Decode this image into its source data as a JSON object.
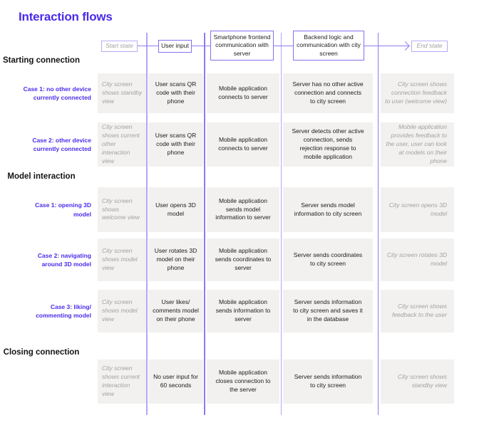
{
  "title": "Interaction flows",
  "colors": {
    "accent": "#4a2ceb",
    "line_purple": "#8d7cf0",
    "line_purple_light": "#b3a6f6",
    "cell_background": "#f2f1f0",
    "muted_text": "#a3a19f",
    "body_text": "#1d1c1a"
  },
  "header": {
    "start": "Start state",
    "user_input": "User input",
    "smartphone": "Smartphone frontend communication with server",
    "backend": "Backend logic and communication with city screen",
    "end": "End state"
  },
  "sections": [
    {
      "heading": "Starting connection",
      "rows": [
        {
          "case_label": "Case 1: no other device currently connected",
          "start_state": "City screen shows standby view",
          "user_input": "User scans QR code with their phone",
          "smartphone": "Mobile application connects to server",
          "backend": "Server has no other active connection and connects to city screen",
          "end_state": "City screen shows connection feedback to user (welcome view)"
        },
        {
          "case_label": "Case 2: other device currently connected",
          "start_state": "City screen shows current other interaction view",
          "user_input": "User scans QR code with their phone",
          "smartphone": "Mobile application connects to server",
          "backend": "Server detects other active connection, sends rejection response to mobile application",
          "end_state": "Mobile application provides feedback to the user, user can look at models on their phone"
        }
      ]
    },
    {
      "heading": "Model interaction",
      "rows": [
        {
          "case_label": "Case 1: opening 3D model",
          "start_state": "City screen shows welcome view",
          "user_input": "User opens 3D model",
          "smartphone": "Mobile application sends model information to server",
          "backend": "Server sends model information to city screen",
          "end_state": "City screen opens 3D model"
        },
        {
          "case_label": "Case 2: navigating around 3D model",
          "start_state": "City screen shows model view",
          "user_input": "User rotates 3D model on their phone",
          "smartphone": "Mobile application sends coordinates to server",
          "backend": "Server sends coordinates to city screen",
          "end_state": "City screen rotates 3D model"
        },
        {
          "case_label": "Case 3: liking/ commenting model",
          "start_state": "City screen shows model view",
          "user_input": "User likes/ comments model on their phone",
          "smartphone": "Mobile application sends information to server",
          "backend": "Server sends information to city screen and saves it in the database",
          "end_state": "City screen shows feedback to the user"
        }
      ]
    },
    {
      "heading": "Closing connection",
      "rows": [
        {
          "case_label": "",
          "start_state": "City screen shows current interaction view",
          "user_input": "No user input for 60 seconds",
          "smartphone": "Mobile application closes connection to the server",
          "backend": "Server sends information to city screen",
          "end_state": "City screen shows standby view"
        }
      ]
    }
  ]
}
